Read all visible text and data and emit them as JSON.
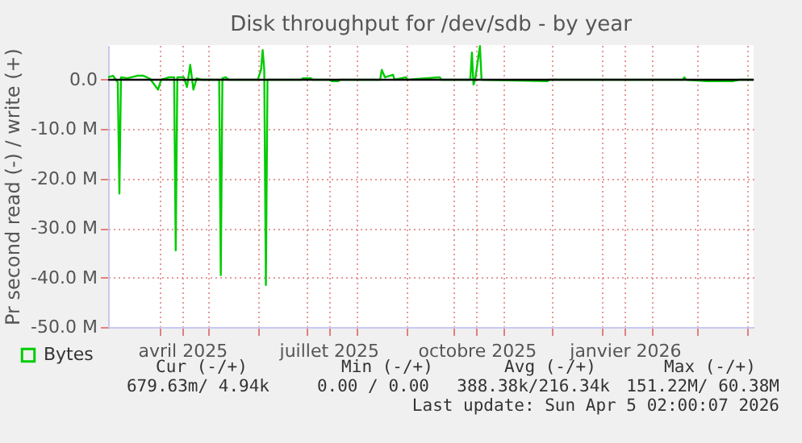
{
  "chart_data": {
    "type": "line",
    "title": "Disk throughput for /dev/sdb - by year",
    "ylabel": "Pr second read (-) / write (+)",
    "xlim": [
      "2025-02-28",
      "2026-04-05"
    ],
    "xticks": [
      {
        "value": "2025-04-01",
        "label": null
      },
      {
        "value": "2025-04-15",
        "label": "avril 2025"
      },
      {
        "value": "2025-05-01",
        "label": null
      },
      {
        "value": "2025-06-01",
        "label": null
      },
      {
        "value": "2025-07-01",
        "label": null
      },
      {
        "value": "2025-07-15",
        "label": "juillet 2025"
      },
      {
        "value": "2025-08-01",
        "label": null
      },
      {
        "value": "2025-09-01",
        "label": null
      },
      {
        "value": "2025-10-01",
        "label": null
      },
      {
        "value": "2025-10-15",
        "label": "octobre 2025"
      },
      {
        "value": "2025-11-01",
        "label": null
      },
      {
        "value": "2025-12-01",
        "label": null
      },
      {
        "value": "2026-01-01",
        "label": null
      },
      {
        "value": "2026-01-15",
        "label": "janvier 2026"
      },
      {
        "value": "2026-02-01",
        "label": null
      },
      {
        "value": "2026-03-01",
        "label": null
      },
      {
        "value": "2026-04-01",
        "label": null
      }
    ],
    "ylim": [
      -50,
      7
    ],
    "yticks": [
      {
        "value": -50,
        "label": "-50.0 M"
      },
      {
        "value": -40,
        "label": "-40.0 M"
      },
      {
        "value": -30,
        "label": "-30.0 M"
      },
      {
        "value": -20,
        "label": "-20.0 M"
      },
      {
        "value": -10,
        "label": "-10.0 M"
      },
      {
        "value": 0,
        "label": "0.0"
      }
    ],
    "x": [
      "2025-02-28",
      "2025-03-03",
      "2025-03-06",
      "2025-03-07",
      "2025-03-08",
      "2025-03-12",
      "2025-03-18",
      "2025-03-22",
      "2025-03-26",
      "2025-03-31",
      "2025-04-02",
      "2025-04-07",
      "2025-04-10",
      "2025-04-11",
      "2025-04-12",
      "2025-04-16",
      "2025-04-18",
      "2025-04-20",
      "2025-04-22",
      "2025-04-24",
      "2025-04-27",
      "2025-05-08",
      "2025-05-09",
      "2025-05-10",
      "2025-05-12",
      "2025-05-14",
      "2025-06-01",
      "2025-06-03",
      "2025-06-04",
      "2025-06-05",
      "2025-06-06",
      "2025-06-07",
      "2025-06-28",
      "2025-06-29",
      "2025-07-04",
      "2025-07-05",
      "2025-07-16",
      "2025-07-17",
      "2025-07-21",
      "2025-07-22",
      "2025-08-16",
      "2025-08-17",
      "2025-08-19",
      "2025-08-24",
      "2025-08-25",
      "2025-09-01",
      "2025-09-02",
      "2025-09-22",
      "2025-09-23",
      "2025-10-11",
      "2025-10-12",
      "2025-10-13",
      "2025-10-14",
      "2025-10-17",
      "2025-10-18",
      "2025-11-28",
      "2025-11-29",
      "2026-02-20",
      "2026-02-21",
      "2026-02-22",
      "2026-03-07",
      "2026-03-23",
      "2026-03-27",
      "2026-04-05"
    ],
    "series": [
      {
        "name": "Bytes",
        "color": "#00cc00",
        "values": [
          0.5,
          0.8,
          -0.5,
          -23,
          0.5,
          0.3,
          0.8,
          0.8,
          0.2,
          -2,
          0,
          0.5,
          0.5,
          -34.5,
          0.5,
          0.5,
          -1.5,
          3,
          -2,
          0.3,
          0,
          0,
          -39.5,
          0.3,
          0.5,
          0,
          0,
          2,
          6,
          2,
          -41.5,
          0,
          0,
          0.3,
          0.3,
          0,
          0,
          -0.3,
          -0.3,
          0,
          0,
          2,
          0.5,
          1,
          0,
          0.5,
          0,
          0.5,
          0,
          0,
          5.5,
          -1,
          0,
          6.8,
          0,
          -0.3,
          0,
          0,
          0.5,
          0,
          -0.3,
          -0.3,
          0,
          0
        ]
      }
    ],
    "ref_lines": [
      {
        "axis": "y",
        "value": 0,
        "color": "#000000"
      }
    ],
    "grid": true,
    "legend": "bottom left",
    "annotations": [
      "Cur (-/+)",
      "Min (-/+)",
      "Avg (-/+)",
      "Max (-/+)",
      "679.63m/  4.94k",
      "0.00 /  0.00",
      "388.38k/216.34k",
      "151.22M/ 60.38M",
      "Last update: Sun Apr  5 02:00:07 2026"
    ]
  }
}
